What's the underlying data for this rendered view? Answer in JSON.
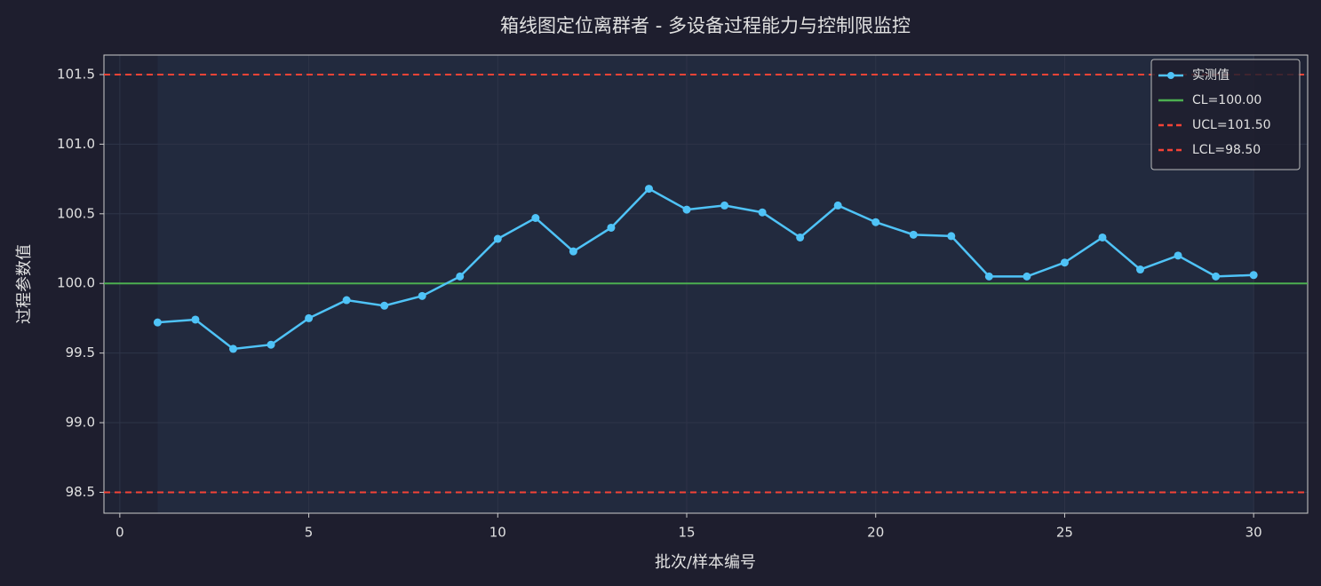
{
  "chart_data": {
    "type": "line",
    "title": "箱线图定位离群者 - 多设备过程能力与控制限监控",
    "x_label": "批次/样本编号",
    "y_label": "过程参数值",
    "x": [
      1,
      2,
      3,
      4,
      5,
      6,
      7,
      8,
      9,
      10,
      11,
      12,
      13,
      14,
      15,
      16,
      17,
      18,
      19,
      20,
      21,
      22,
      23,
      24,
      25,
      26,
      27,
      28,
      29,
      30
    ],
    "series": [
      {
        "name": "实测值",
        "color": "#4fc3f7",
        "values": [
          99.72,
          99.74,
          99.53,
          99.56,
          99.75,
          99.88,
          99.84,
          99.91,
          100.05,
          100.32,
          100.47,
          100.23,
          100.4,
          100.68,
          100.53,
          100.56,
          100.51,
          100.33,
          100.56,
          100.44,
          100.35,
          100.34,
          100.05,
          100.05,
          100.15,
          100.33,
          100.1,
          100.2,
          100.05,
          100.06
        ]
      }
    ],
    "reference_lines": [
      {
        "name": "CL=100.00",
        "value": 100,
        "color": "#4caf50",
        "dashed": false
      },
      {
        "name": "UCL=101.50",
        "value": 101.5,
        "color": "#f44336",
        "dashed": true
      },
      {
        "name": "LCL=98.50",
        "value": 98.5,
        "color": "#f44336",
        "dashed": true
      }
    ],
    "shaded_x": [
      1,
      30
    ],
    "xlim": [
      -0.42,
      31.43
    ],
    "ylim": [
      98.35,
      101.64
    ],
    "xticks": [
      0,
      5,
      10,
      15,
      20,
      25,
      30
    ],
    "yticks": [
      98.5,
      {
        "value": 99,
        "label": "99.0"
      },
      99.5,
      {
        "value": 100,
        "label": "100.0"
      },
      100.5,
      {
        "value": 101,
        "label": "101.0"
      },
      101.5
    ],
    "grid": true,
    "legend": "upper right"
  }
}
